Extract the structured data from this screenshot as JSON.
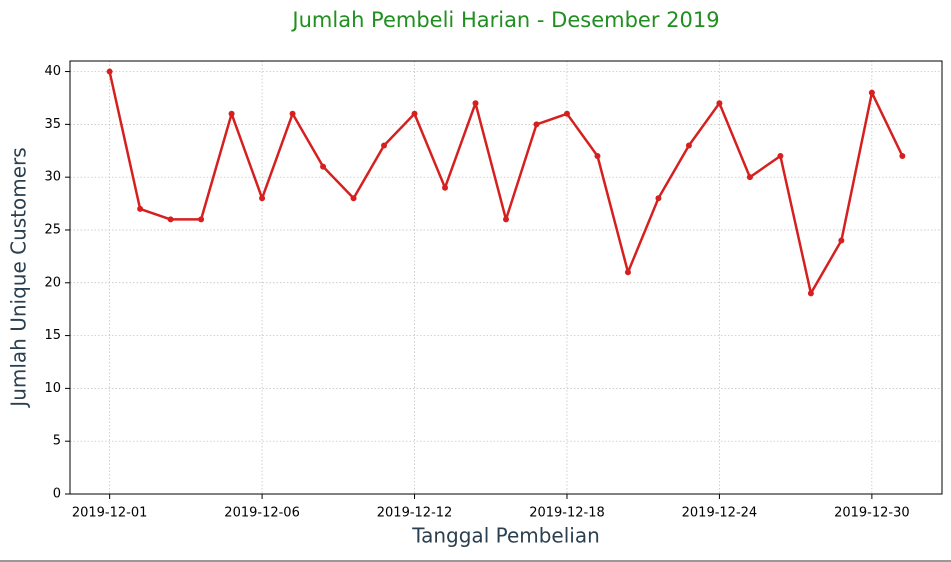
{
  "chart_data": {
    "type": "line",
    "title": "Jumlah Pembeli Harian - Desember 2019",
    "x_label": "Tanggal Pembelian",
    "y_label": "Jumlah Unique Customers",
    "categories": [
      "2019-12-01",
      null,
      null,
      null,
      null,
      "2019-12-06",
      null,
      null,
      null,
      null,
      "2019-12-12",
      null,
      null,
      null,
      null,
      "2019-12-18",
      null,
      null,
      null,
      null,
      "2019-12-24",
      null,
      null,
      null,
      null,
      "2019-12-30",
      null
    ],
    "series": [
      {
        "name": "Jumlah Unique Customers",
        "color": "#d62020",
        "values": [
          40,
          27,
          26,
          26,
          36,
          28,
          36,
          31,
          28,
          33,
          36,
          29,
          37,
          26,
          35,
          36,
          32,
          21,
          28,
          33,
          37,
          30,
          32,
          19,
          24,
          38,
          32
        ]
      }
    ],
    "ylim": [
      0,
      41
    ],
    "yticks": [
      0,
      5,
      10,
      15,
      20,
      25,
      30,
      35,
      40
    ],
    "grid": true
  }
}
